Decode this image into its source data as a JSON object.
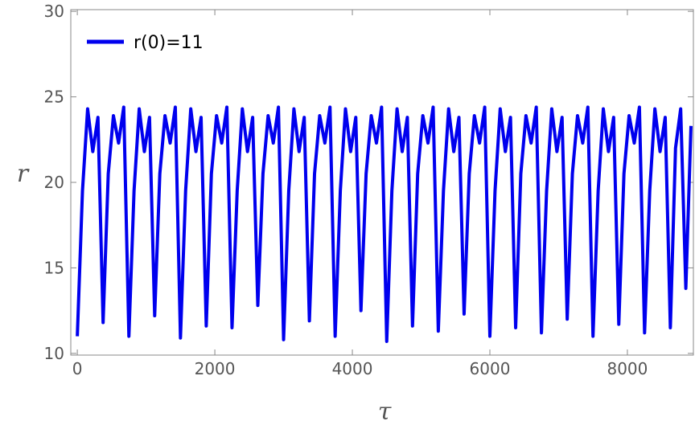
{
  "chart_data": {
    "type": "line",
    "xlabel": "τ",
    "ylabel": "r",
    "xlim": [
      -95,
      8960
    ],
    "ylim": [
      9.9,
      30.1
    ],
    "xticks": [
      0,
      2000,
      4000,
      6000,
      8000
    ],
    "yticks": [
      10,
      15,
      20,
      25,
      30
    ],
    "legend": "upper-left",
    "x": [
      0,
      75,
      150,
      225,
      300,
      375,
      450,
      525,
      600,
      675,
      750,
      825,
      900,
      975,
      1050,
      1125,
      1200,
      1275,
      1350,
      1425,
      1500,
      1575,
      1650,
      1725,
      1800,
      1875,
      1950,
      2025,
      2100,
      2175,
      2250,
      2325,
      2400,
      2475,
      2550,
      2625,
      2700,
      2775,
      2850,
      2925,
      3000,
      3075,
      3150,
      3225,
      3300,
      3375,
      3450,
      3525,
      3600,
      3675,
      3750,
      3825,
      3900,
      3975,
      4050,
      4125,
      4200,
      4275,
      4350,
      4425,
      4500,
      4575,
      4650,
      4725,
      4800,
      4875,
      4950,
      5025,
      5100,
      5175,
      5250,
      5325,
      5400,
      5475,
      5550,
      5625,
      5700,
      5775,
      5850,
      5925,
      6000,
      6075,
      6150,
      6225,
      6300,
      6375,
      6450,
      6525,
      6600,
      6675,
      6750,
      6825,
      6900,
      6975,
      7050,
      7125,
      7200,
      7275,
      7350,
      7425,
      7500,
      7575,
      7650,
      7725,
      7800,
      7875,
      7950,
      8025,
      8100,
      8175,
      8250,
      8325,
      8400,
      8475,
      8550,
      8625,
      8700,
      8775,
      8850,
      8925
    ],
    "series": [
      {
        "name": "r(0)=11",
        "color": "#0000ee",
        "values": [
          11,
          19.5,
          24.3,
          21.8,
          23.8,
          11.8,
          20.5,
          23.9,
          22.3,
          24.4,
          11,
          19.5,
          24.3,
          21.8,
          23.8,
          12.2,
          20.5,
          23.9,
          22.3,
          24.4,
          10.9,
          19.5,
          24.3,
          21.8,
          23.8,
          11.6,
          20.5,
          23.9,
          22.3,
          24.4,
          11.5,
          19.5,
          24.3,
          21.8,
          23.8,
          12.8,
          20.5,
          23.9,
          22.3,
          24.4,
          10.8,
          19.5,
          24.3,
          21.8,
          23.8,
          11.9,
          20.5,
          23.9,
          22.3,
          24.4,
          11,
          19.5,
          24.3,
          21.8,
          23.8,
          12.5,
          20.5,
          23.9,
          22.3,
          24.4,
          10.7,
          19.5,
          24.3,
          21.8,
          23.8,
          11.6,
          20.5,
          23.9,
          22.3,
          24.4,
          11.3,
          19.5,
          24.3,
          21.8,
          23.8,
          12.3,
          20.5,
          23.9,
          22.3,
          24.4,
          11,
          19.5,
          24.3,
          21.8,
          23.8,
          11.5,
          20.5,
          23.9,
          22.3,
          24.4,
          11.2,
          19.5,
          24.3,
          21.8,
          23.8,
          12,
          20.5,
          23.9,
          22.3,
          24.4,
          11,
          19.5,
          24.3,
          21.8,
          23.8,
          11.7,
          20.5,
          23.9,
          22.3,
          24.4,
          11.2,
          19.5,
          24.3,
          21.8,
          23.8,
          11.5,
          22,
          24.3,
          13.8,
          23.3
        ]
      }
    ]
  }
}
